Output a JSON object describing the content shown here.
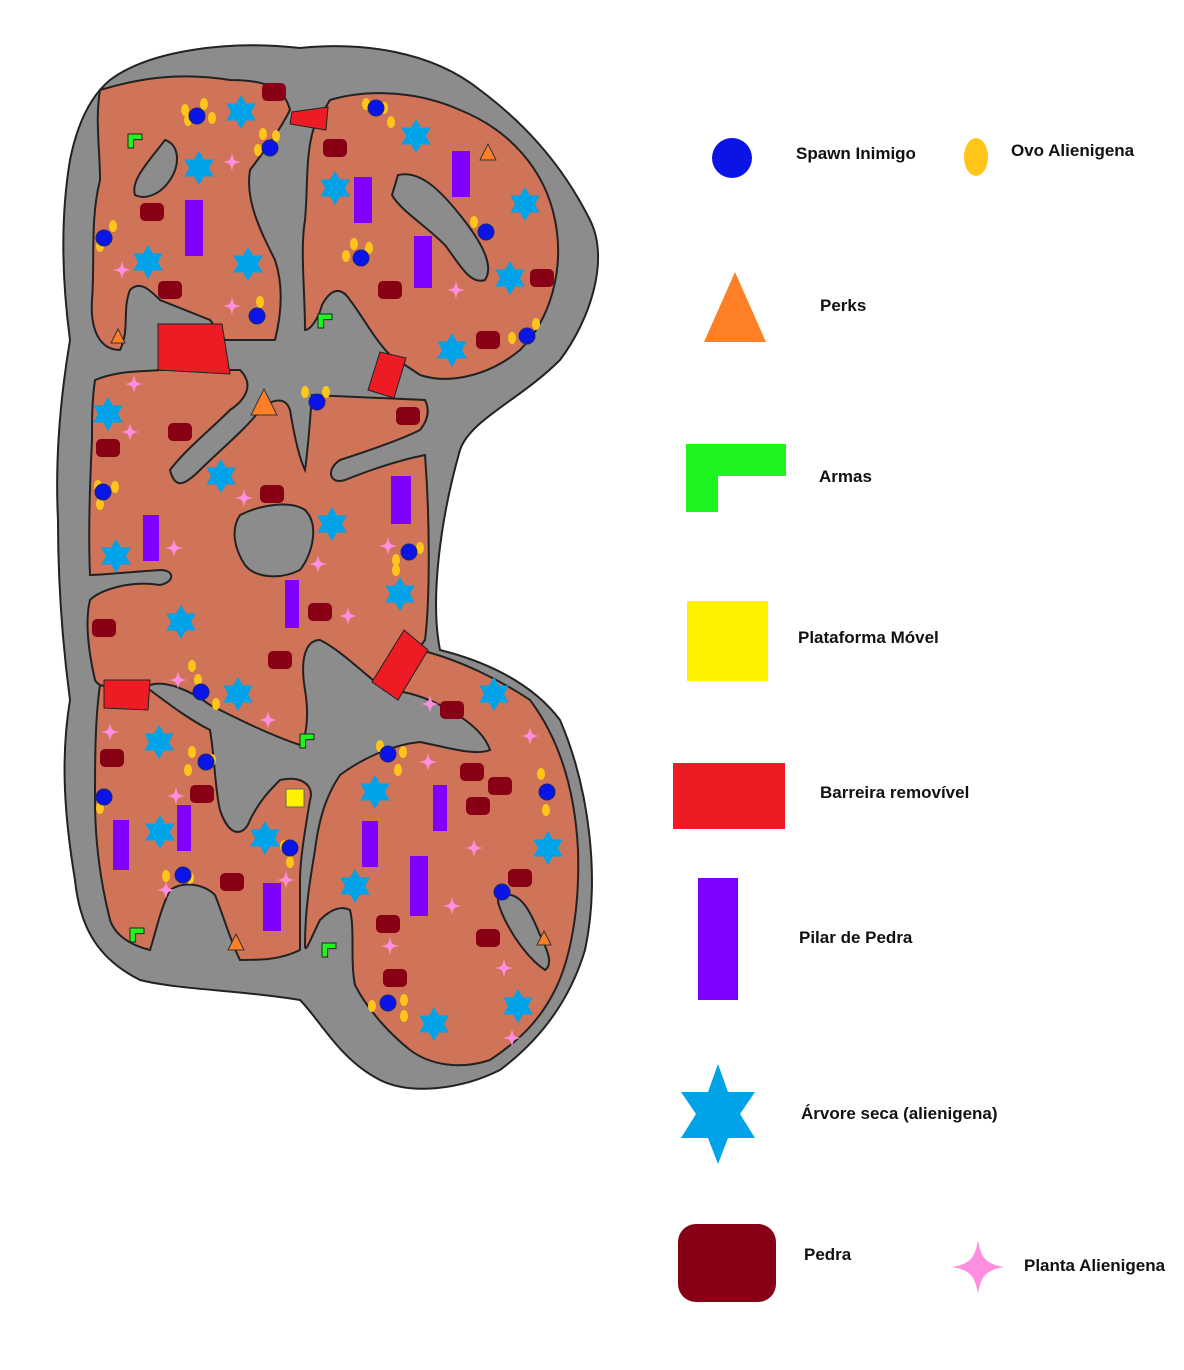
{
  "legend": {
    "items": [
      {
        "key": "spawn",
        "label": "Spawn Inimigo",
        "color": "#0a14e6",
        "icon": "circle"
      },
      {
        "key": "egg",
        "label": "Ovo Alienigena",
        "color": "#ffc619",
        "icon": "ellipse"
      },
      {
        "key": "perks",
        "label": "Perks",
        "color": "#ff7f27",
        "icon": "triangle"
      },
      {
        "key": "weapons",
        "label": "Armas",
        "color": "#1ef51e",
        "icon": "l-shape"
      },
      {
        "key": "platform",
        "label": "Plataforma Móvel",
        "color": "#fff200",
        "icon": "square"
      },
      {
        "key": "barrier",
        "label": "Barreira removível",
        "color": "#ed1c24",
        "icon": "rectangle"
      },
      {
        "key": "pillar",
        "label": "Pilar de Pedra",
        "color": "#8000ff",
        "icon": "tall-rectangle"
      },
      {
        "key": "tree",
        "label": "Árvore seca (alienigena)",
        "color": "#00a2e8",
        "icon": "six-point-star"
      },
      {
        "key": "rock",
        "label": "Pedra",
        "color": "#880015",
        "icon": "rounded-rectangle"
      },
      {
        "key": "plant",
        "label": "Planta Alienigena",
        "color": "#ff8ee0",
        "icon": "four-point-sparkle"
      }
    ]
  },
  "map": {
    "colors": {
      "cave_wall": "#8c8c8c",
      "ground": "#cf7459",
      "outline": "#222222"
    }
  }
}
